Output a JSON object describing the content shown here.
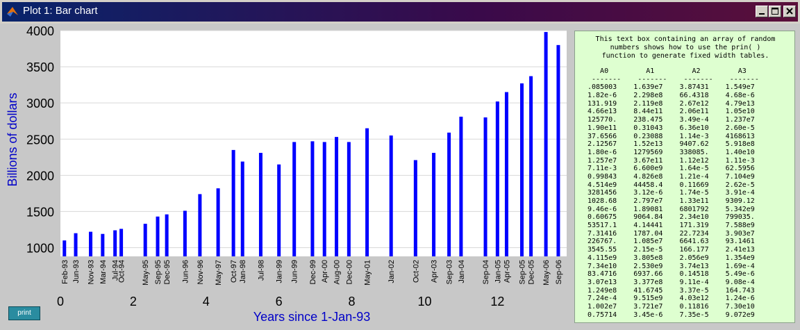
{
  "window": {
    "title": "Plot 1: Bar chart",
    "controls": [
      "minimize-icon",
      "maximize-icon",
      "close-icon"
    ]
  },
  "print_label": "print",
  "textbox": {
    "intro": "This text box containing an array of random\nnumbers shows how to use the prin( )\nfunction to generate fixed width tables.",
    "table": "   A0         A1         A2         A3\n -------    -------    -------    -------\n.085003    1.639e7    3.87431    1.549e7\n1.82e-6    2.298e8    66.4318    4.68e-6\n131.919    2.119e8    2.67e12    4.79e13\n4.66e13    8.44e11    2.06e11    1.05e10\n125770.    238.475    3.49e-4    1.237e7\n1.90e11    0.31043    6.36e10    2.60e-5\n37.6566    0.23088    1.14e-3    4168613\n2.12567    1.52e13    9407.62    5.918e8\n1.80e-6    1279569    338085.    1.40e10\n1.257e7    3.67e11    1.12e12    1.11e-3\n7.11e-3    6.600e9    1.64e-5    62.5956\n0.99843    4.826e8    1.21e-4    7.104e9\n4.514e9    44458.4    0.11669    2.62e-5\n3281456    3.12e-6    1.74e-5    3.91e-4\n1028.68    2.797e7    1.33e11    9309.12\n9.46e-6    1.89081    6801792    5.342e9\n0.60675    9064.84    2.34e10    799035.\n53517.1    4.14441    171.319    7.588e9\n7.31416    1787.04    22.7234    3.903e7\n226767.    1.085e7    6641.63    93.1461\n3545.55    2.15e-5    166.177    2.41e13\n4.115e9    3.805e8    2.056e9    1.354e9\n7.34e10    2.530e9    3.74e13    1.69e-4\n83.4716    6937.66    0.14518    5.49e-6\n3.07e13    3.377e8    9.11e-4    9.08e-4\n1.249e8    41.6745    3.37e-5    164.743\n7.24e-4    9.515e9    4.03e12    1.24e-6\n1.002e7    3.721e7    0.11816    7.30e10\n0.75714    3.45e-6    7.35e-5    9.072e9"
  },
  "chart_data": {
    "type": "bar",
    "title": "",
    "xlabel": "Years since 1-Jan-93",
    "ylabel": "Billions of dollars",
    "xlim": [
      0,
      13.9
    ],
    "ylim": [
      880,
      4000
    ],
    "yticks": [
      1000,
      1500,
      2000,
      2500,
      3000,
      3500,
      4000
    ],
    "xticks": [
      0,
      2,
      4,
      6,
      8,
      10,
      12
    ],
    "grid": "horizontal",
    "bar_color": "#0000ff",
    "x": [
      0.11,
      0.42,
      0.83,
      1.16,
      1.5,
      1.67,
      2.33,
      2.67,
      2.92,
      3.42,
      3.83,
      4.33,
      4.75,
      5.0,
      5.5,
      6.0,
      6.42,
      6.92,
      7.25,
      7.58,
      7.92,
      8.42,
      9.08,
      9.75,
      10.25,
      10.67,
      11.0,
      11.67,
      12.0,
      12.25,
      12.67,
      12.92,
      13.33,
      13.67
    ],
    "categories": [
      "Feb-93",
      "Jun-93",
      "Nov-93",
      "Mar-94",
      "Jul-94",
      "Oct-94",
      "May-95",
      "Sep-95",
      "Dec-95",
      "Jun-96",
      "Nov-96",
      "May-97",
      "Oct-97",
      "Jan-98",
      "Jul-98",
      "Jan-99",
      "Jun-99",
      "Dec-99",
      "Apr-00",
      "Aug-00",
      "Dec-00",
      "May-01",
      "Jan-02",
      "Oct-02",
      "Apr-03",
      "Sep-03",
      "Jan-04",
      "Sep-04",
      "Jan-05",
      "Apr-05",
      "Sep-05",
      "Dec-05",
      "May-06",
      "Sep-06"
    ],
    "values": [
      1100,
      1200,
      1220,
      1190,
      1240,
      1260,
      1330,
      1430,
      1460,
      1510,
      1740,
      1820,
      2350,
      2190,
      2310,
      2150,
      2460,
      2470,
      2460,
      2530,
      2460,
      2650,
      2550,
      2210,
      2310,
      2590,
      2810,
      2800,
      3020,
      3150,
      3270,
      3370,
      3980,
      3800
    ]
  }
}
